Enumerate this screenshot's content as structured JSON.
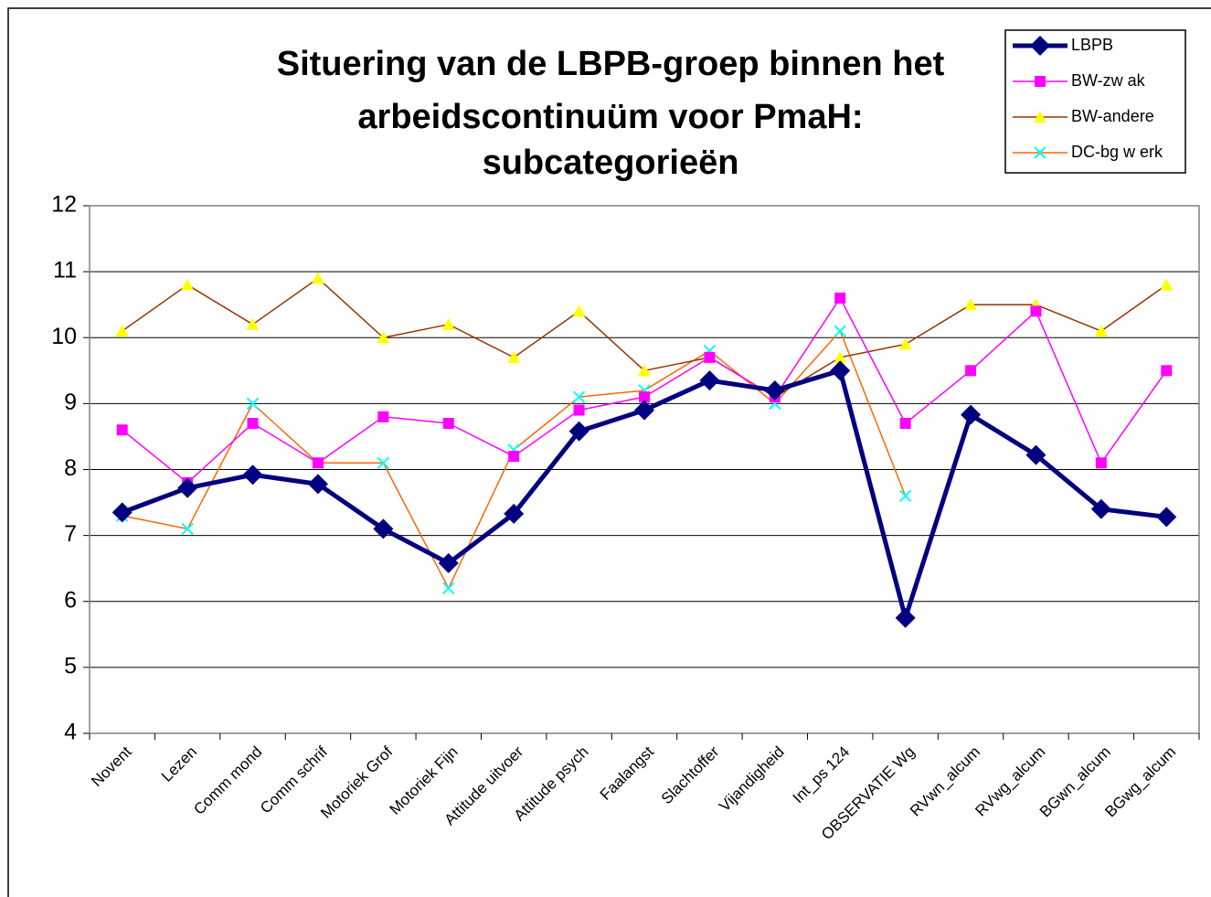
{
  "chart_data": {
    "type": "line",
    "title": [
      "Situering van de LBPB-groep binnen het",
      "arbeidscontinuüm voor PmaH:",
      "subcategorieën"
    ],
    "categories": [
      "Novent",
      "Lezen",
      "Comm mond",
      "Comm schrif",
      "Motoriek Grof",
      "Motoriek Fijn",
      "Attitude uitvoer",
      "Attitude psych",
      "Faalangst",
      "Slachtoffer",
      "Vijandigheid",
      "Int_ps 124",
      "OBSERVATIE Wg",
      "RVwn_alcum",
      "RVwg_alcum",
      "BGwn_alcum",
      "BGwg_alcum"
    ],
    "series": [
      {
        "name": "LBPB",
        "color": "#000080",
        "marker_color": "#000080",
        "marker": "diamond",
        "width": 5,
        "values": [
          7.35,
          7.72,
          7.92,
          7.78,
          7.1,
          6.58,
          7.33,
          8.58,
          8.9,
          9.35,
          9.2,
          9.5,
          5.75,
          8.83,
          8.22,
          7.4,
          7.28
        ]
      },
      {
        "name": "BW-zw ak",
        "color": "#ff00ff",
        "marker_color": "#ff00ff",
        "marker": "square",
        "width": 1.5,
        "values": [
          8.6,
          7.8,
          8.7,
          8.1,
          8.8,
          8.7,
          8.2,
          8.9,
          9.1,
          9.7,
          9.1,
          10.6,
          8.7,
          9.5,
          10.4,
          8.1,
          9.5
        ]
      },
      {
        "name": "BW-andere",
        "color": "#993300",
        "marker_color": "#ffff00",
        "marker": "triangle",
        "width": 1.5,
        "values": [
          10.1,
          10.8,
          10.2,
          10.9,
          10.0,
          10.2,
          9.7,
          10.4,
          9.5,
          9.7,
          9.1,
          9.7,
          9.9,
          10.5,
          10.5,
          10.1,
          10.8
        ]
      },
      {
        "name": "DC-bg w erk",
        "color": "#ff6600",
        "marker_color": "#00ffff",
        "marker": "x",
        "width": 1.5,
        "values": [
          7.3,
          7.1,
          9.0,
          8.1,
          8.1,
          6.2,
          8.3,
          9.1,
          9.2,
          9.8,
          9.0,
          10.1,
          7.6,
          null,
          null,
          null,
          null
        ]
      }
    ],
    "ylim": [
      4,
      12
    ],
    "yticks": [
      4,
      5,
      6,
      7,
      8,
      9,
      10,
      11,
      12
    ],
    "grid": true,
    "legend": "top-right"
  }
}
